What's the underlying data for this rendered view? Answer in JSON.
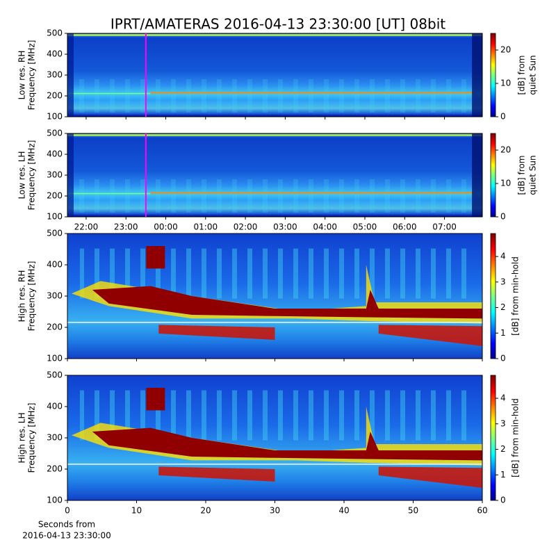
{
  "title": "IPRT/AMATERAS 2016-04-13 23:30:00 [UT]   08bit",
  "chart_data": [
    {
      "type": "heatmap",
      "ylabel": [
        "Low res. RH",
        "Frequency [MHz]"
      ],
      "xlim": [
        21.53,
        31.95
      ],
      "ylim": [
        100,
        500
      ],
      "yticks": [
        100,
        200,
        300,
        400,
        500
      ],
      "colormap": "jet",
      "clim": [
        0,
        25
      ],
      "cticks": [
        0,
        10,
        20
      ],
      "clabel": [
        "[dB] from",
        "quiet Sun"
      ],
      "vline_x": 23.5,
      "vline_color": "#ff00ff"
    },
    {
      "type": "heatmap",
      "ylabel": [
        "Low res. LH",
        "Frequency [MHz]"
      ],
      "xlim": [
        21.53,
        31.95
      ],
      "ylim": [
        100,
        500
      ],
      "yticks": [
        100,
        200,
        300,
        400,
        500
      ],
      "xticks": [
        {
          "value": 22,
          "label": "22:00"
        },
        {
          "value": 23,
          "label": "23:00"
        },
        {
          "value": 24,
          "label": "00:00"
        },
        {
          "value": 25,
          "label": "01:00"
        },
        {
          "value": 26,
          "label": "02:00"
        },
        {
          "value": 27,
          "label": "03:00"
        },
        {
          "value": 28,
          "label": "04:00"
        },
        {
          "value": 29,
          "label": "05:00"
        },
        {
          "value": 30,
          "label": "06:00"
        },
        {
          "value": 31,
          "label": "07:00"
        }
      ],
      "colormap": "jet",
      "clim": [
        0,
        25
      ],
      "cticks": [
        0,
        10,
        20
      ],
      "clabel": [
        "[dB] from",
        "quiet Sun"
      ],
      "vline_x": 23.5,
      "vline_color": "#ff00ff"
    },
    {
      "type": "heatmap",
      "ylabel": [
        "High res. RH",
        "Frequency [MHz]"
      ],
      "xlim": [
        0,
        60
      ],
      "ylim": [
        100,
        500
      ],
      "yticks": [
        100,
        200,
        300,
        400,
        500
      ],
      "colormap": "jet",
      "clim": [
        0,
        4.9
      ],
      "cticks": [
        0,
        1,
        2,
        3,
        4
      ],
      "clabel": [
        "[dB] from min-hold"
      ]
    },
    {
      "type": "heatmap",
      "ylabel": [
        "High res. LH",
        "Frequency [MHz]"
      ],
      "xlim": [
        0,
        60
      ],
      "ylim": [
        100,
        500
      ],
      "yticks": [
        100,
        200,
        300,
        400,
        500
      ],
      "xticks": [
        0,
        10,
        20,
        30,
        40,
        50,
        60
      ],
      "xlabel": [
        "Seconds from",
        "2016-04-13 23:30:00"
      ],
      "colormap": "jet",
      "clim": [
        0,
        4.9
      ],
      "cticks": [
        0,
        1,
        2,
        3,
        4
      ],
      "clabel": [
        "[dB] from min-hold"
      ]
    }
  ]
}
